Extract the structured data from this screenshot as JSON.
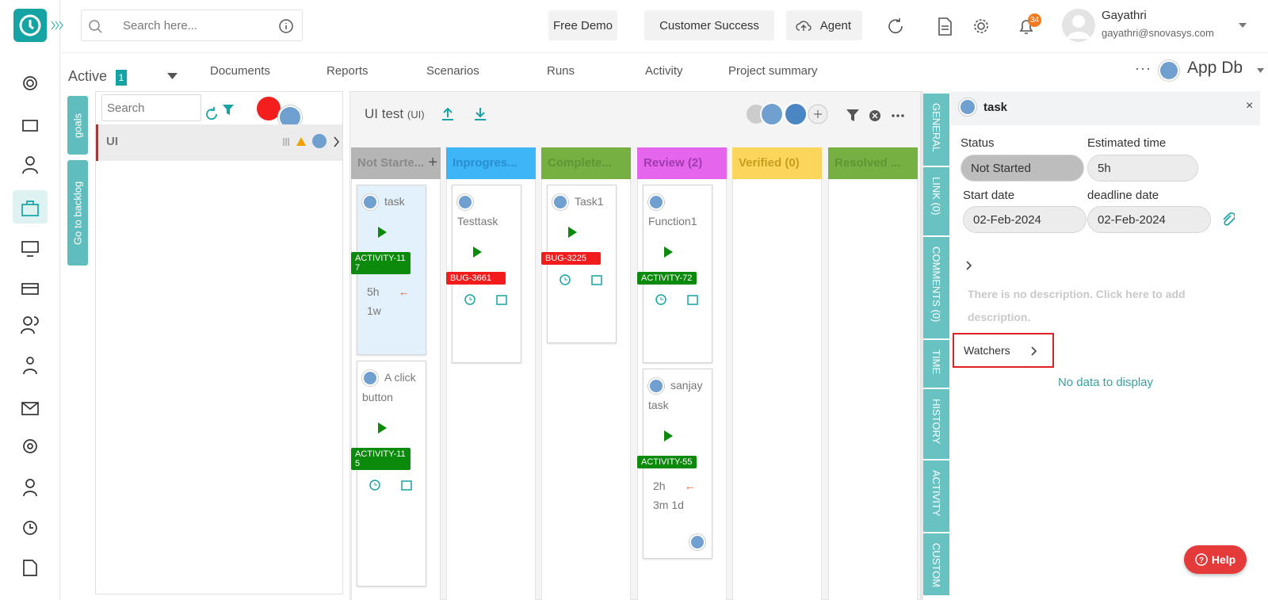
{
  "header": {
    "search_placeholder": "Search here...",
    "buttons": [
      "Free Demo",
      "Customer Success",
      "Agent"
    ],
    "notification_count": "34",
    "user_name": "Gayathri",
    "user_email": "gayathri@snovasys.com"
  },
  "tabs": {
    "status": "Active",
    "status_count": "1",
    "items": [
      "Documents",
      "Reports",
      "Scenarios",
      "Runs",
      "Activity",
      "Project summary"
    ],
    "project": "App Db"
  },
  "side_buttons": [
    "goals",
    "Go to backlog"
  ],
  "left_panel": {
    "search_placeholder": "Search",
    "items": [
      "UI"
    ]
  },
  "board": {
    "title": "UI test",
    "code": "(UI)",
    "columns": [
      {
        "title": "Not Starte...",
        "color": "#b5b5b5",
        "text_color": "#8a8a8a",
        "cards": [
          {
            "title": "task",
            "tag": "ACTIVITY-117",
            "tag_color": "#0b8a0b",
            "estimate": "5h",
            "deadline": "1w"
          },
          {
            "title": "A click button",
            "tag": "ACTIVITY-115",
            "tag_color": "#0b8a0b"
          }
        ]
      },
      {
        "title": "Inprogres...",
        "color": "#3db5f7",
        "text_color": "#2a8fd0",
        "cards": [
          {
            "title": "Testtask",
            "tag": "BUG-3661",
            "tag_color": "#f21c1c"
          }
        ]
      },
      {
        "title": "Complete...",
        "color": "#76b043",
        "text_color": "#5f9634",
        "cards": [
          {
            "title": "Task1",
            "tag": "BUG-3225",
            "tag_color": "#f21c1c"
          }
        ]
      },
      {
        "title": "Review (2)",
        "color": "#e566ec",
        "text_color": "#a03ab0",
        "cards": [
          {
            "title": "Function1",
            "tag": "ACTIVITY-72",
            "tag_color": "#0b8a0b"
          },
          {
            "title": "sanjay task",
            "tag": "ACTIVITY-55",
            "tag_color": "#0b8a0b",
            "estimate": "2h",
            "deadline": "3m 1d"
          }
        ]
      },
      {
        "title": "Verified (0)",
        "color": "#fbd55c",
        "text_color": "#c99d1c",
        "cards": []
      },
      {
        "title": "Resolved ...",
        "color": "#76b043",
        "text_color": "#5f9634",
        "cards": []
      }
    ]
  },
  "detail_tabs": [
    "GENERAL",
    "LINK (0)",
    "COMMENTS (0)",
    "TIME",
    "HISTORY",
    "ACTIVITY",
    "CUSTOM"
  ],
  "detail": {
    "title": "task",
    "status_label": "Status",
    "status": "Not Started",
    "estimate_label": "Estimated time",
    "estimate": "5h",
    "start_label": "Start date",
    "start": "02-Feb-2024",
    "deadline_label": "deadline date",
    "deadline": "02-Feb-2024",
    "description": "There is no description. Click here to add description.",
    "watchers": "Watchers",
    "empty": "No data to display"
  },
  "help": "Help"
}
